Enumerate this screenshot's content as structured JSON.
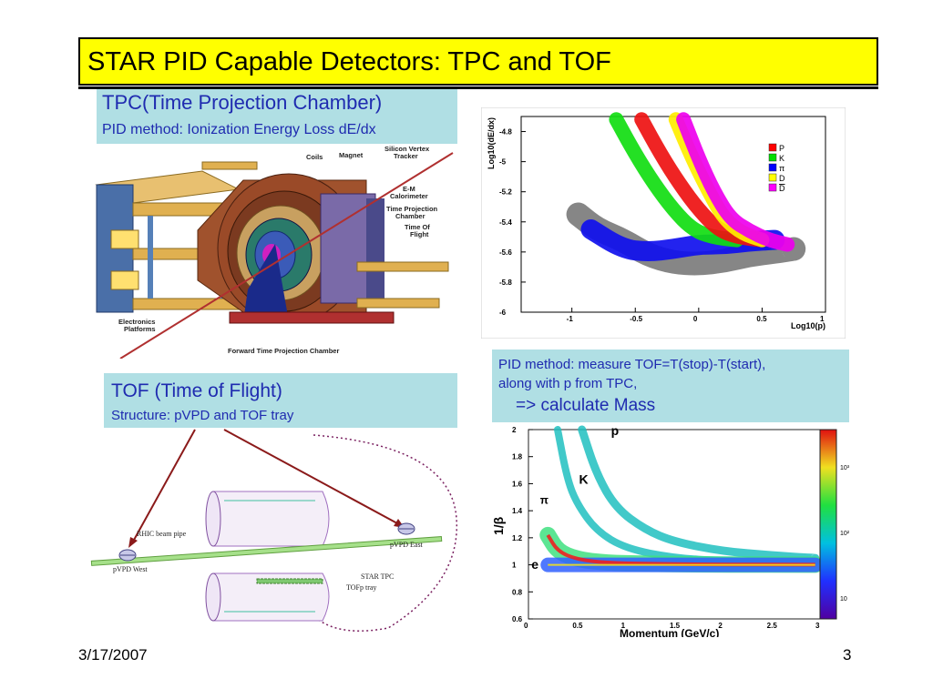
{
  "slide": {
    "title": "STAR PID Capable \u0001\u0001Detectors: TPC and TOF",
    "date": "3/17/2007",
    "page_number": "3"
  },
  "tpc": {
    "heading": "TPC(Time Projection Chamber)",
    "method": "PID method: Ionization Energy Loss dE/dx",
    "labels": [
      "Coils",
      "Magnet",
      "Silicon Vertex",
      "Tracker",
      "E-M",
      "Calorimeter",
      "Time Projection",
      "Chamber",
      "Time Of",
      "Flight",
      "Electronics",
      "Platforms",
      "Forward Time Projection Chamber"
    ]
  },
  "tof": {
    "heading": "TOF  (Time of Flight)",
    "structure": "Structure: pVPD and TOF tray",
    "labels": [
      "RHIC beam pipe",
      "pVPD West",
      "pVPD East",
      "STAR TPC",
      "TOFp tray"
    ]
  },
  "pid_tof": {
    "line1": "PID method: measure TOF=T(stop)-T(start),",
    "line2": "along with p from TPC,",
    "line3": "=>  calculate Mass"
  },
  "colors": {
    "title_bg": "#ffff00",
    "box_bg": "#b0dfe4",
    "box_text": "#1f2bb0",
    "arrow": "#8b1a1a",
    "dotted": "#7a2060"
  },
  "chart_data": [
    {
      "type": "scatter",
      "title": "",
      "xlabel": "Log10(p)",
      "ylabel": "Log10(dE/dx)",
      "xlim": [
        -1.4,
        1
      ],
      "ylim": [
        -6,
        -4.7
      ],
      "x_ticks": [
        "-1",
        "-0.5",
        "0",
        "0.5",
        "1"
      ],
      "y_ticks": [
        "-4.8",
        "-5",
        "-5.2",
        "-5.4",
        "-5.6",
        "-5.8",
        "-6"
      ],
      "legend": {
        "placement": "top-right",
        "entries": [
          {
            "name": "P",
            "color": "#ff0000"
          },
          {
            "name": "K",
            "color": "#00dd00"
          },
          {
            "name": "π",
            "color": "#0000ff"
          },
          {
            "name": "D",
            "color": "#ffff00"
          },
          {
            "name": "D",
            "color": "#ff00ff",
            "overline": true
          }
        ]
      },
      "series": [
        {
          "name": "π",
          "color": "#1010ee",
          "x": [
            -0.85,
            -0.6,
            -0.4,
            -0.2,
            0.0,
            0.2,
            0.4,
            0.6
          ],
          "y": [
            -5.45,
            -5.58,
            -5.6,
            -5.58,
            -5.55,
            -5.55,
            -5.53,
            -5.52
          ]
        },
        {
          "name": "K",
          "color": "#11dd11",
          "x": [
            -0.65,
            -0.5,
            -0.35,
            -0.2,
            -0.05,
            0.1,
            0.3
          ],
          "y": [
            -4.72,
            -4.95,
            -5.15,
            -5.32,
            -5.45,
            -5.5,
            -5.52
          ]
        },
        {
          "name": "P",
          "color": "#ee1111",
          "x": [
            -0.45,
            -0.3,
            -0.15,
            0.0,
            0.15,
            0.3,
            0.5
          ],
          "y": [
            -4.72,
            -4.95,
            -5.15,
            -5.32,
            -5.45,
            -5.5,
            -5.52
          ]
        },
        {
          "name": "D",
          "color": "#ffee00",
          "x": [
            -0.18,
            -0.05,
            0.08,
            0.2,
            0.35,
            0.5
          ],
          "y": [
            -4.72,
            -4.98,
            -5.2,
            -5.38,
            -5.48,
            -5.52
          ]
        },
        {
          "name": "D̅",
          "color": "#ee00ee",
          "x": [
            -0.12,
            0.0,
            0.12,
            0.25,
            0.4,
            0.55,
            0.7
          ],
          "y": [
            -4.72,
            -4.98,
            -5.2,
            -5.38,
            -5.46,
            -5.52,
            -5.55
          ]
        }
      ]
    },
    {
      "type": "scatter",
      "title": "",
      "xlabel": "Momentum (GeV/c)",
      "ylabel": "1/β",
      "xlim": [
        0,
        3
      ],
      "ylim": [
        0.6,
        2
      ],
      "x_ticks": [
        "0",
        "0.5",
        "1",
        "1.5",
        "2",
        "2.5",
        "3"
      ],
      "y_ticks": [
        "0.6",
        "0.8",
        "1",
        "1.2",
        "1.4",
        "1.6",
        "1.8",
        "2"
      ],
      "colorbar_ticks": [
        "10",
        "10²",
        "10³"
      ],
      "band_labels": [
        "p",
        "K",
        "π",
        "e"
      ],
      "series": [
        {
          "name": "p",
          "x": [
            0.55,
            0.7,
            0.9,
            1.2,
            1.5,
            2.0,
            2.5,
            2.95
          ],
          "y": [
            2.0,
            1.67,
            1.42,
            1.26,
            1.17,
            1.1,
            1.07,
            1.05
          ]
        },
        {
          "name": "K",
          "x": [
            0.3,
            0.4,
            0.5,
            0.7,
            1.0,
            1.5,
            2.0,
            2.95
          ],
          "y": [
            2.0,
            1.63,
            1.45,
            1.25,
            1.12,
            1.05,
            1.03,
            1.015
          ]
        },
        {
          "name": "π",
          "x": [
            0.2,
            0.3,
            0.5,
            0.8,
            1.2,
            2.0,
            2.95
          ],
          "y": [
            1.22,
            1.1,
            1.04,
            1.015,
            1.007,
            1.002,
            1.001
          ]
        },
        {
          "name": "e",
          "x": [
            0.2,
            0.5,
            1.0,
            2.0,
            2.95
          ],
          "y": [
            1.0,
            1.0,
            1.0,
            1.0,
            1.0
          ]
        }
      ]
    }
  ]
}
